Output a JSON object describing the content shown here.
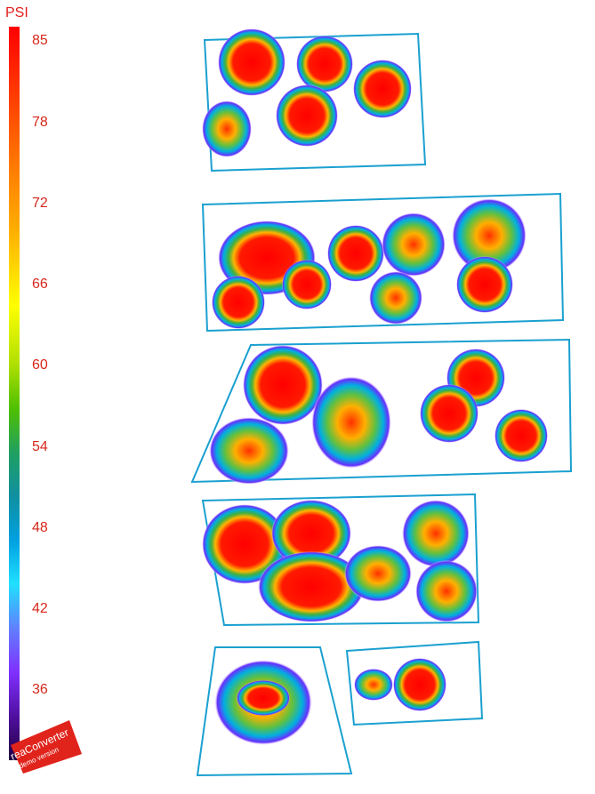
{
  "scale": {
    "title": "PSI",
    "ticks": [
      "85",
      "78",
      "72",
      "66",
      "60",
      "54",
      "48",
      "42",
      "36"
    ]
  },
  "watermark": {
    "name": "reaConverter",
    "subtitle": "demo version"
  },
  "colors": {
    "hot": "#ff0000",
    "warm": "#ffb400",
    "mid": "#40b040",
    "cool": "#00b0e0",
    "cold": "#6a2cff",
    "label": "#d6281c"
  }
}
